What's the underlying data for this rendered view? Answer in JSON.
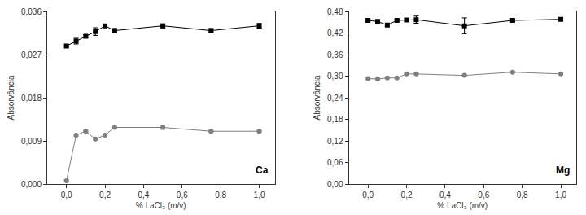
{
  "chart_data": [
    {
      "type": "line",
      "annotation": "Ca",
      "x_label": "% LaCl₃ (m/v)",
      "y_label": "Absorvância",
      "x": [
        0,
        0.05,
        0.1,
        0.15,
        0.2,
        0.25,
        0.5,
        0.75,
        1.0
      ],
      "series": [
        {
          "color": "#000000",
          "marker": "square",
          "values": [
            0.0288,
            0.0298,
            0.0308,
            0.0318,
            0.033,
            0.032,
            0.033,
            0.032,
            0.033
          ],
          "errors": [
            0.0003,
            0.0006,
            0.0003,
            0.0008,
            0.0003,
            0.0004,
            0.0004,
            0.0004,
            0.0005
          ]
        },
        {
          "color": "#7f7f7f",
          "marker": "circle",
          "values": [
            0.0007,
            0.0102,
            0.011,
            0.0094,
            0.0102,
            0.0118,
            0.0118,
            0.011,
            0.011
          ],
          "errors": [
            0.0002,
            0.0002,
            0.0002,
            0.0002,
            0.0002,
            0.0002,
            0.0004,
            0.0002,
            0.0002
          ]
        }
      ],
      "xlim": [
        -0.1,
        1.08
      ],
      "xticks": [
        {
          "value": 0,
          "label": "0,0"
        },
        {
          "value": 0.2,
          "label": "0,2"
        },
        {
          "value": 0.4,
          "label": "0,4"
        },
        {
          "value": 0.6,
          "label": "0,6"
        },
        {
          "value": 0.8,
          "label": "0,8"
        },
        {
          "value": 1.0,
          "label": "1,0"
        }
      ],
      "ylim": [
        0,
        0.036
      ],
      "yticks": [
        {
          "value": 0,
          "label": "0,000"
        },
        {
          "value": 0.009,
          "label": "0,009"
        },
        {
          "value": 0.018,
          "label": "0,018"
        },
        {
          "value": 0.027,
          "label": "0,027"
        },
        {
          "value": 0.036,
          "label": "0,036"
        }
      ],
      "grid": false
    },
    {
      "type": "line",
      "annotation": "Mg",
      "x_label": "% LaCl₃ (m/v)",
      "y_label": "Absorvância",
      "x": [
        0,
        0.05,
        0.1,
        0.15,
        0.2,
        0.25,
        0.5,
        0.75,
        1.0
      ],
      "series": [
        {
          "color": "#000000",
          "marker": "square",
          "values": [
            0.455,
            0.452,
            0.442,
            0.455,
            0.456,
            0.457,
            0.44,
            0.455,
            0.458
          ],
          "errors": [
            0.003,
            0.003,
            0.003,
            0.003,
            0.004,
            0.01,
            0.022,
            0.003,
            0.003
          ]
        },
        {
          "color": "#7f7f7f",
          "marker": "circle",
          "values": [
            0.293,
            0.292,
            0.295,
            0.295,
            0.306,
            0.306,
            0.302,
            0.311,
            0.306
          ],
          "errors": [
            0.002,
            0.002,
            0.002,
            0.002,
            0.002,
            0.002,
            0.002,
            0.002,
            0.002
          ]
        }
      ],
      "xlim": [
        -0.1,
        1.08
      ],
      "xticks": [
        {
          "value": 0,
          "label": "0,0"
        },
        {
          "value": 0.2,
          "label": "0,2"
        },
        {
          "value": 0.4,
          "label": "0,4"
        },
        {
          "value": 0.6,
          "label": "0,6"
        },
        {
          "value": 0.8,
          "label": "0,8"
        },
        {
          "value": 1.0,
          "label": "1,0"
        }
      ],
      "ylim": [
        0,
        0.48
      ],
      "yticks": [
        {
          "value": 0,
          "label": "0,00"
        },
        {
          "value": 0.06,
          "label": "0,06"
        },
        {
          "value": 0.12,
          "label": "0,12"
        },
        {
          "value": 0.18,
          "label": "0,18"
        },
        {
          "value": 0.24,
          "label": "0,24"
        },
        {
          "value": 0.3,
          "label": "0,30"
        },
        {
          "value": 0.36,
          "label": "0,36"
        },
        {
          "value": 0.42,
          "label": "0,42"
        },
        {
          "value": 0.48,
          "label": "0,48"
        }
      ],
      "grid": false
    }
  ]
}
